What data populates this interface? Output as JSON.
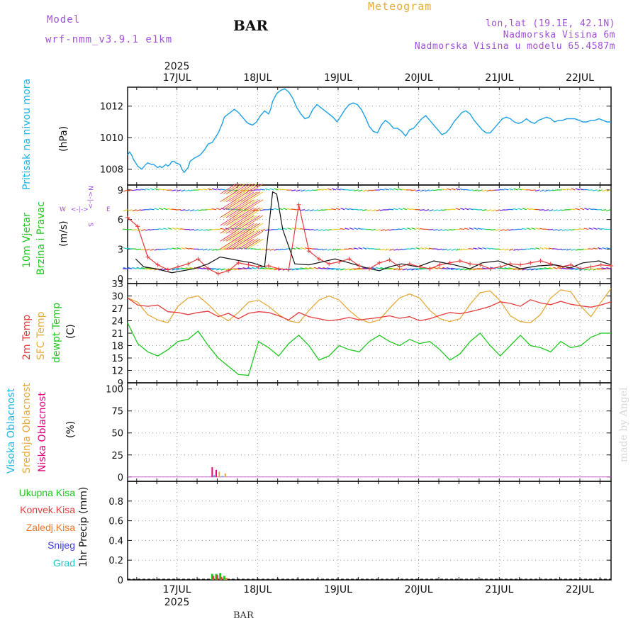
{
  "header": {
    "model_label": "Model",
    "model_name": "wrf-nmm_v3.9.1 e1km",
    "station": "BAR",
    "product": "Meteogram",
    "coords": "lon,lat (19.1E, 42.1N)",
    "elevation": "Nadmorska Visina 6m",
    "model_elevation": "Nadmorska Visina u modelu 65.4587m",
    "year_top": "2025",
    "year_bottom": "2025",
    "footer_station": "BAR",
    "watermark": "made by Angel"
  },
  "colors": {
    "pressure": "#1ea0e6",
    "temp2m": "#e63c3c",
    "sfc": "#e6aa3c",
    "dew": "#1ec81e",
    "high_cloud": "#1eb4e6",
    "mid_cloud": "#e6aa3c",
    "low_cloud": "#e6007a",
    "wind_label": "#1ec81e",
    "ukupna": "#1ec81e",
    "konvek": "#e63c3c",
    "zaledj": "#f07828",
    "snijeg": "#3c3cdc",
    "grad": "#1ec8c8",
    "model_text": "#a050dc",
    "meteogram_title": "#e6aa3c"
  },
  "chart_data": [
    {
      "type": "line",
      "panel": "pressure",
      "title": "",
      "ylabel_main": "Pritisak na nivou mora",
      "ylabel_unit": "(hPa)",
      "x_labels": [
        "17JUL",
        "18JUL",
        "19JUL",
        "20JUL",
        "21JUL",
        "22JUL"
      ],
      "ylim": [
        1007,
        1013.2
      ],
      "yticks": [
        1008,
        1010,
        1012
      ],
      "grid": true,
      "series": [
        {
          "name": "",
          "x": [
            0,
            0.1,
            0.2,
            0.3,
            0.4,
            0.5,
            0.7,
            0.9,
            1.0,
            1.2,
            1.3,
            1.5,
            1.6,
            1.7,
            1.8,
            1.9,
            2.0,
            2.1,
            2.2,
            2.3,
            2.4,
            2.6,
            2.7,
            2.8,
            3.0,
            3.1,
            3.3,
            3.6,
            3.8,
            3.9,
            4.0,
            4.2,
            4.3,
            4.5,
            4.7,
            4.8,
            5.0,
            5.2,
            5.3,
            5.5,
            5.7,
            5.9,
            6.0,
            6.2,
            6.4,
            6.6,
            6.8,
            6.9,
            7.0,
            7.1,
            7.2,
            7.4,
            7.6,
            7.8,
            8.0,
            8.2,
            8.4,
            8.6,
            8.8,
            9.0,
            9.2,
            9.4,
            9.6,
            9.8,
            10.0,
            10.2,
            10.4,
            10.6,
            10.8,
            11.0,
            11.2,
            11.4,
            11.6,
            11.8,
            12.0,
            12.2,
            12.4,
            12.6,
            12.8,
            13.0,
            13.2,
            13.4,
            13.6,
            13.8,
            14.0,
            14.2,
            14.4,
            14.6,
            14.8,
            15.0,
            15.2,
            15.4,
            15.6,
            15.8,
            16.0,
            16.2,
            16.4,
            16.6,
            16.8,
            17.0,
            17.2,
            17.4,
            17.6,
            17.8,
            18.0,
            18.2,
            18.4,
            18.6,
            18.8,
            19.0,
            19.2,
            19.4,
            19.6,
            19.8,
            20.0,
            20.2,
            20.4,
            20.6,
            20.8,
            21.0,
            21.2,
            21.4,
            21.6,
            21.8,
            22.0,
            22.2,
            22.4,
            22.6,
            22.8,
            23.0,
            23.2,
            23.4,
            23.6,
            23.8,
            24.0
          ],
          "y": [
            1008.9,
            1009.1,
            1008.9,
            1008.6,
            1008.4,
            1008.2,
            1008.0,
            1008.3,
            1008.4,
            1008.3,
            1008.3,
            1008.1,
            1008.2,
            1008.1,
            1008.2,
            1008.3,
            1008.2,
            1008.3,
            1008.5,
            1008.5,
            1008.4,
            1008.3,
            1008.0,
            1007.8,
            1008.1,
            1008.5,
            1008.7,
            1008.9,
            1009.2,
            1009.4,
            1009.6,
            1009.7,
            1009.9,
            1010.3,
            1010.9,
            1011.3,
            1011.5,
            1011.7,
            1011.8,
            1011.6,
            1011.3,
            1011.0,
            1010.9,
            1010.8,
            1011.0,
            1011.4,
            1011.7,
            1011.6,
            1011.5,
            1011.8,
            1012.3,
            1012.8,
            1013.0,
            1013.1,
            1012.9,
            1012.5,
            1011.9,
            1011.5,
            1011.2,
            1011.3,
            1011.8,
            1012.1,
            1011.9,
            1011.7,
            1011.5,
            1011.3,
            1011.0,
            1011.4,
            1011.8,
            1012.1,
            1012.2,
            1012.1,
            1011.8,
            1011.3,
            1010.7,
            1010.4,
            1010.3,
            1010.8,
            1011.1,
            1010.9,
            1010.6,
            1010.6,
            1010.4,
            1010.1,
            1010.5,
            1010.6,
            1010.9,
            1011.2,
            1011.4,
            1011.1,
            1010.8,
            1010.5,
            1010.2,
            1010.3,
            1010.6,
            1011.0,
            1011.3,
            1011.6,
            1011.7,
            1011.5,
            1011.1,
            1010.8,
            1010.5,
            1010.3,
            1010.3,
            1010.6,
            1010.9,
            1011.2,
            1011.3,
            1011.2,
            1011.0,
            1010.9,
            1011.0,
            1011.2,
            1011.0,
            1010.9,
            1011.1,
            1011.2,
            1011.3,
            1011.2,
            1011.0,
            1011.1,
            1011.1,
            1011.2,
            1011.2,
            1011.2,
            1011.1,
            1011.0,
            1011.0,
            1011.1,
            1011.1,
            1011.2,
            1011.1,
            1011.0,
            1011.0
          ]
        }
      ]
    },
    {
      "type": "line",
      "panel": "wind",
      "ylabel_main": "10m Vjetar",
      "ylabel_main2": "Brzina i Pravac",
      "ylabel_unit": "(m/s)",
      "compass": {
        "n": "N",
        "s": "S",
        "e": "E",
        "w": "W",
        "arrow_lr": "<-|->",
        "arrow_ud": "<-|->"
      },
      "ylim": [
        -0.5,
        9.5
      ],
      "yticks": [
        0,
        3,
        6,
        9
      ],
      "grid": true,
      "series": [
        {
          "name": "",
          "x": [
            0,
            0.5,
            1,
            1.5,
            2,
            2.5,
            3,
            3.5,
            4,
            4.5,
            5,
            5.5,
            6,
            6.5,
            7,
            7.5,
            8,
            8.5,
            9,
            9.5,
            10,
            10.5,
            11,
            11.5,
            12,
            12.5,
            13,
            13.5,
            14,
            14.5,
            15,
            15.5,
            16,
            16.5,
            17,
            17.5,
            18,
            18.5,
            19,
            19.5,
            20,
            20.5,
            21,
            21.5,
            22,
            22.5,
            23,
            23.5,
            24
          ],
          "y": [
            6.2,
            5.3,
            2.2,
            1.4,
            0.9,
            1.2,
            1.5,
            2.0,
            1.0,
            0.5,
            0.8,
            1.6,
            1.4,
            1.2,
            1.3,
            1.0,
            0.9,
            7.5,
            2.8,
            2.0,
            1.5,
            1.7,
            2.0,
            1.3,
            1.0,
            1.6,
            1.9,
            1.2,
            1.5,
            1.2,
            1.0,
            1.4,
            1.6,
            1.8,
            1.5,
            1.4,
            1.0,
            1.2,
            1.5,
            1.4,
            1.6,
            1.8,
            1.5,
            1.2,
            1.4,
            1.0,
            1.2,
            1.4,
            1.3
          ]
        },
        {
          "name": "",
          "x": [
            0.4,
            0.8,
            1.4,
            2.2,
            3.3,
            4.0,
            4.6,
            5.6,
            6.2,
            6.8,
            7.2,
            7.4,
            7.7,
            8.3,
            9.0,
            10.3,
            11.0,
            12.0,
            12.5,
            13.0,
            13.6,
            14.4,
            15.2,
            16.2,
            17.0,
            17.6,
            18.4,
            19.5,
            20.4,
            21.2,
            22.0,
            22.6,
            23.4,
            24.0
          ],
          "y": [
            2.0,
            1.2,
            1.0,
            0.6,
            1.0,
            1.5,
            2.2,
            1.8,
            1.6,
            1.2,
            8.8,
            8.6,
            5.0,
            1.5,
            1.4,
            2.0,
            1.6,
            1.0,
            0.8,
            1.2,
            1.5,
            1.2,
            1.8,
            1.4,
            1.0,
            1.6,
            1.8,
            1.0,
            1.3,
            1.4,
            1.1,
            1.6,
            1.8,
            1.4
          ]
        }
      ],
      "arrow_rows": [
        0,
        1,
        3,
        5,
        7,
        9
      ]
    },
    {
      "type": "line",
      "panel": "temperature",
      "ylabel_main": "2m Temp",
      "ylabel_main2": "SFC Temp",
      "ylabel_main3": "dewpt Temp",
      "ylabel_unit": "(C)",
      "ylim": [
        9,
        33
      ],
      "yticks": [
        9,
        12,
        15,
        18,
        21,
        24,
        27,
        30,
        33
      ],
      "grid": true,
      "series": [
        {
          "name": "2m Temp",
          "x": [
            0,
            0.5,
            1,
            1.5,
            2,
            2.5,
            3,
            3.5,
            4,
            4.5,
            5,
            5.5,
            6,
            6.5,
            7,
            7.5,
            8,
            8.5,
            9,
            9.5,
            10,
            10.5,
            11,
            11.5,
            12,
            12.5,
            13,
            13.5,
            14,
            14.5,
            15,
            15.5,
            16,
            16.5,
            17,
            17.5,
            18,
            18.5,
            19,
            19.5,
            20,
            20.5,
            21,
            21.5,
            22,
            22.5,
            23,
            23.5,
            24
          ],
          "y": [
            29.5,
            27.8,
            27.5,
            27.8,
            26.2,
            26.0,
            25.5,
            26.0,
            26.3,
            25.0,
            25.8,
            24.5,
            25.8,
            26.2,
            26.0,
            25.2,
            24.2,
            26.0,
            25.0,
            24.5,
            24.0,
            24.3,
            24.8,
            24.2,
            24.5,
            24.8,
            25.2,
            24.6,
            25.0,
            24.0,
            24.5,
            25.3,
            26.0,
            25.7,
            26.2,
            26.8,
            27.5,
            28.6,
            28.2,
            27.5,
            29.1,
            28.3,
            27.9,
            28.7,
            28.0,
            27.6,
            27.3,
            27.8,
            28.6
          ]
        },
        {
          "name": "SFC Temp",
          "x": [
            0,
            0.5,
            1,
            1.5,
            2,
            2.5,
            3,
            3.5,
            4,
            4.5,
            5,
            5.5,
            6,
            6.5,
            7,
            7.5,
            8,
            8.5,
            9,
            9.5,
            10,
            10.5,
            11,
            11.5,
            12,
            12.5,
            13,
            13.5,
            14,
            14.5,
            15,
            15.5,
            16,
            16.5,
            17,
            17.5,
            18,
            18.5,
            19,
            19.5,
            20,
            20.5,
            21,
            21.5,
            22,
            22.5,
            23,
            23.5,
            24
          ],
          "y": [
            29.5,
            28.5,
            25.5,
            24.2,
            23.5,
            27.5,
            29.5,
            30.0,
            28.0,
            25.5,
            24.0,
            26.0,
            28.5,
            29.0,
            27.5,
            25.5,
            24.0,
            23.5,
            26.5,
            29.0,
            30.0,
            29.0,
            26.5,
            24.5,
            23.5,
            24.2,
            27.0,
            29.5,
            30.5,
            29.5,
            26.5,
            24.5,
            23.8,
            24.5,
            28.0,
            30.8,
            31.2,
            28.8,
            25.2,
            23.8,
            23.5,
            25.5,
            29.5,
            31.5,
            31.0,
            27.5,
            25.0,
            28.5,
            31.8
          ]
        },
        {
          "name": "dewpt Temp",
          "x": [
            0,
            0.5,
            1,
            1.5,
            2,
            2.5,
            3,
            3.5,
            4,
            4.5,
            5,
            5.5,
            6,
            6.5,
            7,
            7.5,
            8,
            8.5,
            9,
            9.5,
            10,
            10.5,
            11,
            11.5,
            12,
            12.5,
            13,
            13.5,
            14,
            14.5,
            15,
            15.5,
            16,
            16.5,
            17,
            17.5,
            18,
            18.5,
            19,
            19.5,
            20,
            20.5,
            21,
            21.5,
            22,
            22.5,
            23,
            23.5,
            24
          ],
          "y": [
            23.5,
            18.5,
            16.5,
            15.5,
            17.0,
            19.0,
            19.5,
            21.5,
            18.0,
            15.0,
            13.0,
            11.0,
            10.8,
            19.0,
            17.5,
            15.5,
            18.5,
            20.5,
            18.0,
            14.5,
            15.5,
            18.0,
            17.0,
            16.5,
            19.0,
            20.5,
            19.0,
            18.0,
            19.5,
            18.5,
            19.0,
            17.0,
            14.5,
            16.0,
            19.0,
            21.0,
            18.0,
            15.5,
            18.0,
            20.5,
            18.0,
            17.5,
            16.5,
            19.0,
            17.5,
            18.0,
            20.0,
            21.0,
            21.0
          ]
        }
      ]
    },
    {
      "type": "bar",
      "panel": "cloud",
      "ylabel_main": "Visoka Oblacnost",
      "ylabel_main2": "Srednja Oblacnost",
      "ylabel_main3": "Niska Oblacnost",
      "ylabel_unit": "(%)",
      "ylim": [
        -5,
        107
      ],
      "yticks": [
        0,
        25,
        50,
        75,
        100
      ],
      "grid": true,
      "series": [
        {
          "name": "Visoka Oblacnost",
          "x": [
            4.3,
            4.7
          ],
          "values": [
            2,
            1
          ]
        },
        {
          "name": "Srednja Oblacnost",
          "x": [
            4.55,
            4.85
          ],
          "values": [
            6,
            4
          ]
        },
        {
          "name": "Niska Oblacnost",
          "x": [
            4.2,
            4.4
          ],
          "values": [
            11,
            8
          ]
        }
      ]
    },
    {
      "type": "bar",
      "panel": "precip",
      "ylabel_unit": "1hr Precip (mm)",
      "legend": [
        "Ukupna Kisa",
        "Konvek.Kisa",
        "Zaledj.Kisa",
        "Snijeg",
        "Grad"
      ],
      "ylim": [
        0,
        1.0
      ],
      "yticks": [
        0,
        0.2,
        0.4,
        0.6,
        0.8
      ],
      "grid": true,
      "series": [
        {
          "name": "Ukupna Kisa",
          "x": [
            4.2,
            4.4,
            4.6,
            4.8
          ],
          "values": [
            0.06,
            0.06,
            0.07,
            0.04
          ]
        },
        {
          "name": "Konvek.Kisa",
          "x": [
            4.25,
            4.45,
            4.65
          ],
          "values": [
            0.04,
            0.05,
            0.03
          ]
        },
        {
          "name": "Zaledj.Kisa",
          "x": [
            4.9
          ],
          "values": [
            0.02
          ]
        }
      ]
    }
  ]
}
